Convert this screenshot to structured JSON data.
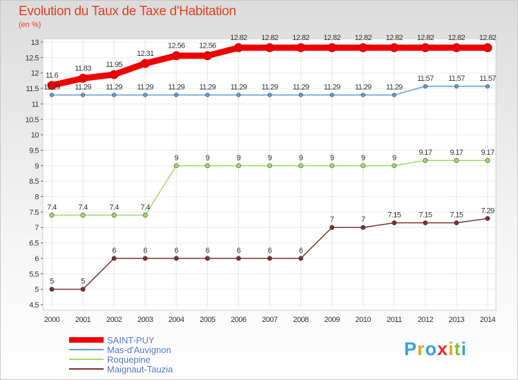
{
  "chart_data": {
    "type": "line",
    "title": "Evolution du Taux de Taxe d'Habitation",
    "ylabel": "(en %)",
    "xlabel": "",
    "x": [
      "2000",
      "2001",
      "2002",
      "2003",
      "2004",
      "2005",
      "2006",
      "2007",
      "2008",
      "2009",
      "2010",
      "2011",
      "2012",
      "2013",
      "2014"
    ],
    "ylim": [
      4.5,
      13
    ],
    "yticks": [
      4.5,
      5,
      5.5,
      6,
      6.5,
      7,
      7.5,
      8,
      8.5,
      9,
      9.5,
      10,
      10.5,
      11,
      11.5,
      12,
      12.5,
      13
    ],
    "series": [
      {
        "name": "SAINT-PUY",
        "color": "#ee0000",
        "values": [
          11.6,
          11.83,
          11.95,
          12.31,
          12.56,
          12.56,
          12.82,
          12.82,
          12.82,
          12.82,
          12.82,
          12.82,
          12.82,
          12.82,
          12.82
        ],
        "labels": [
          "11.6",
          "11.83",
          "11.95",
          "12.31",
          "12.56",
          "12.56",
          "12.82",
          "12.82",
          "12.82",
          "12.82",
          "12.82",
          "12.82",
          "12.82",
          "12.82",
          "12.82"
        ]
      },
      {
        "name": "Mas-d'Auvignon",
        "color": "#5b9bd5",
        "values": [
          11.29,
          11.29,
          11.29,
          11.29,
          11.29,
          11.29,
          11.29,
          11.29,
          11.29,
          11.29,
          11.29,
          11.29,
          11.57,
          11.57,
          11.57
        ],
        "labels": [
          "11.29",
          "11.29",
          "11.29",
          "11.29",
          "11.29",
          "11.29",
          "11.29",
          "11.29",
          "11.29",
          "11.29",
          "11.29",
          "11.29",
          "11.57",
          "11.57",
          "11.57"
        ]
      },
      {
        "name": "Roquepine",
        "color": "#99dd66",
        "values": [
          7.4,
          7.4,
          7.4,
          7.4,
          9,
          9,
          9,
          9,
          9,
          9,
          9,
          9,
          9.17,
          9.17,
          9.17
        ],
        "labels": [
          "7.4",
          "7.4",
          "7.4",
          "7.4",
          "9",
          "9",
          "9",
          "9",
          "9",
          "9",
          "9",
          "9",
          "9.17",
          "9.17",
          "9.17"
        ]
      },
      {
        "name": "Maignaut-Tauzia",
        "color": "#7a3030",
        "values": [
          5,
          5,
          6,
          6,
          6,
          6,
          6,
          6,
          6,
          7,
          7,
          7.15,
          7.15,
          7.15,
          7.29
        ],
        "labels": [
          "5",
          "5",
          "6",
          "6",
          "6",
          "6",
          "6",
          "6",
          "6",
          "7",
          "7",
          "7.15",
          "7.15",
          "7.15",
          "7.29"
        ]
      }
    ]
  },
  "logo": {
    "letters": [
      "P",
      "r",
      "o",
      "x",
      "i",
      "t",
      "i"
    ],
    "colors": [
      "#3aa0e0",
      "#f0a020",
      "#3aa0e0",
      "#e03030",
      "#f0a020",
      "#80c040",
      "#3aa0e0"
    ]
  }
}
